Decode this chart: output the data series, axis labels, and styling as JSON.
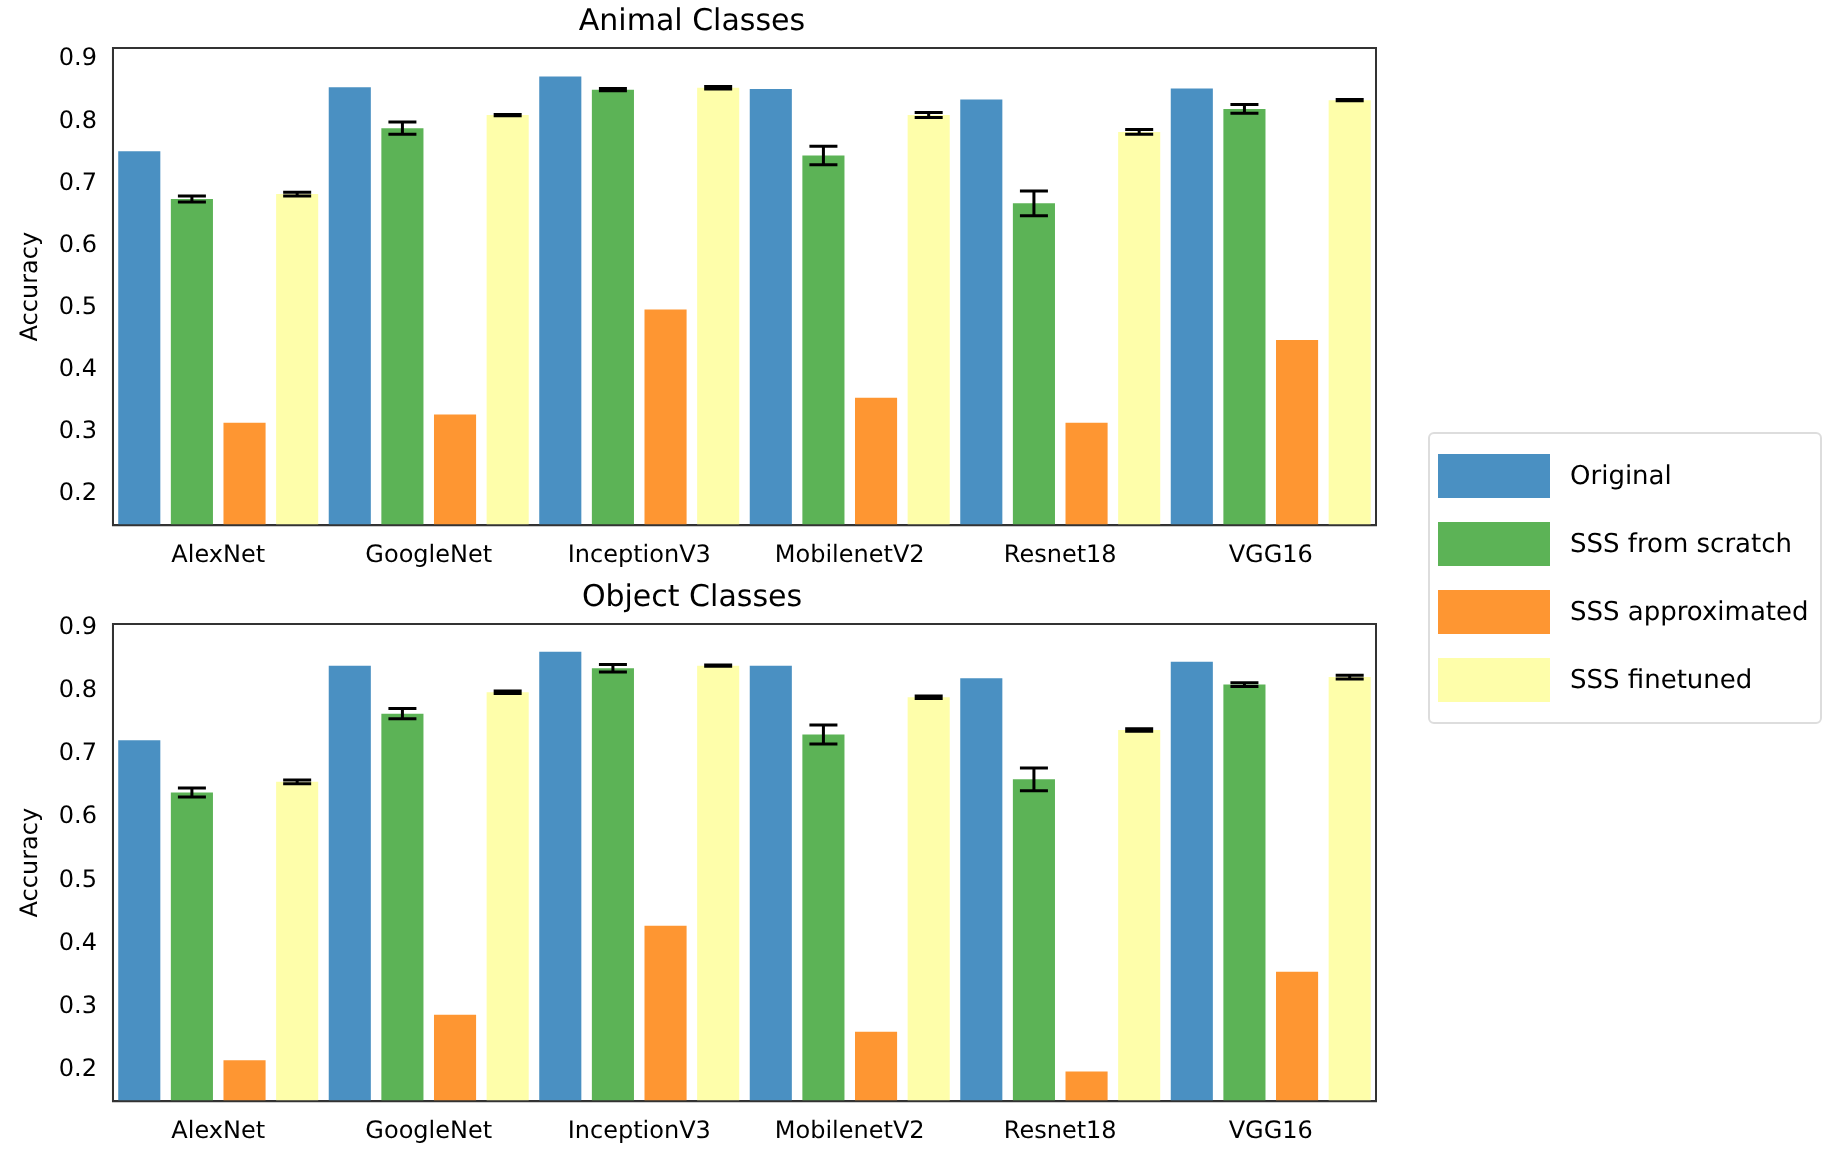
{
  "chart_data": [
    {
      "type": "bar",
      "title": "Animal Classes",
      "ylabel": "Accuracy",
      "categories": [
        "AlexNet",
        "GoogleNet",
        "InceptionV3",
        "MobilenetV2",
        "Resnet18",
        "VGG16"
      ],
      "ylim": [
        0.15,
        0.918
      ],
      "yticks": [
        {
          "value": 0.2,
          "label": "0.2"
        },
        {
          "value": 0.3,
          "label": "0.3"
        },
        {
          "value": 0.4,
          "label": "0.4"
        },
        {
          "value": 0.5,
          "label": "0.5"
        },
        {
          "value": 0.6,
          "label": "0.6"
        },
        {
          "value": 0.7,
          "label": "0.7"
        },
        {
          "value": 0.8,
          "label": "0.8"
        },
        {
          "value": 0.9,
          "label": "0.9"
        }
      ],
      "legend": "right",
      "grid": false,
      "series": [
        {
          "name": "Original",
          "color": "#4a90c2",
          "values": [
            0.752,
            0.855,
            0.872,
            0.852,
            0.835,
            0.853
          ]
        },
        {
          "name": "SSS from scratch",
          "color": "#5cb356",
          "values": [
            0.675,
            0.789,
            0.851,
            0.745,
            0.668,
            0.82
          ],
          "errors": [
            0.005,
            0.01,
            0.002,
            0.015,
            0.02,
            0.007
          ]
        },
        {
          "name": "SSS approximated",
          "color": "#fe9632",
          "values": [
            0.315,
            0.328,
            0.497,
            0.355,
            0.315,
            0.448
          ]
        },
        {
          "name": "SSS finetuned",
          "color": "#fefeaa",
          "values": [
            0.683,
            0.81,
            0.854,
            0.81,
            0.783,
            0.834
          ],
          "errors": [
            0.003,
            0.001,
            0.002,
            0.004,
            0.004,
            0.001
          ]
        }
      ]
    },
    {
      "type": "bar",
      "title": "Object Classes",
      "ylabel": "Accuracy",
      "categories": [
        "AlexNet",
        "GoogleNet",
        "InceptionV3",
        "MobilenetV2",
        "Resnet18",
        "VGG16"
      ],
      "ylim": [
        0.15,
        0.906
      ],
      "yticks": [
        {
          "value": 0.2,
          "label": "0.2"
        },
        {
          "value": 0.3,
          "label": "0.3"
        },
        {
          "value": 0.4,
          "label": "0.4"
        },
        {
          "value": 0.5,
          "label": "0.5"
        },
        {
          "value": 0.6,
          "label": "0.6"
        },
        {
          "value": 0.7,
          "label": "0.7"
        },
        {
          "value": 0.8,
          "label": "0.8"
        },
        {
          "value": 0.9,
          "label": "0.9"
        }
      ],
      "grid": false,
      "series": [
        {
          "color": "#4a90c2",
          "values": [
            0.722,
            0.84,
            0.862,
            0.84,
            0.82,
            0.846
          ]
        },
        {
          "color": "#5cb356",
          "values": [
            0.639,
            0.764,
            0.836,
            0.731,
            0.66,
            0.81
          ],
          "errors": [
            0.007,
            0.008,
            0.006,
            0.015,
            0.018,
            0.003
          ]
        },
        {
          "color": "#fe9632",
          "values": [
            0.215,
            0.287,
            0.428,
            0.26,
            0.197,
            0.355
          ]
        },
        {
          "color": "#fefeaa",
          "values": [
            0.656,
            0.798,
            0.84,
            0.79,
            0.738,
            0.822
          ],
          "errors": [
            0.003,
            0.002,
            0.001,
            0.002,
            0.002,
            0.003
          ]
        }
      ]
    }
  ]
}
